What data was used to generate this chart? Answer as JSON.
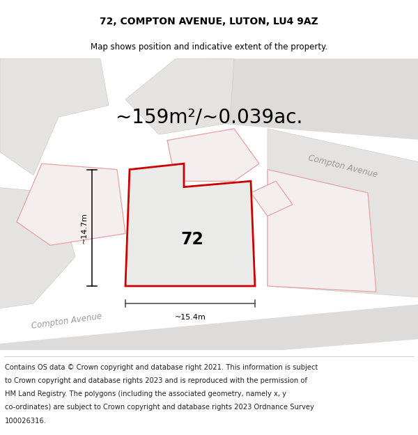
{
  "title": "72, COMPTON AVENUE, LUTON, LU4 9AZ",
  "subtitle": "Map shows position and indicative extent of the property.",
  "area_text": "~159m²/~0.039ac.",
  "house_number": "72",
  "width_label": "~15.4m",
  "height_label": "~14.7m",
  "street_label_1": "Compton Avenue",
  "street_label_2": "Compton Avenue",
  "map_bg": "#f2f1f0",
  "road_fill": "#dddcdb",
  "building_fill": "#e4e3e2",
  "building_edge": "#c8c7c6",
  "plot_fill": "#eaeae8",
  "plot_edge_color": "#cc0000",
  "neighbor_edge": "#e8a0a0",
  "neighbor_fill": "#f5eeee",
  "dim_line_color": "#444444",
  "street_color": "#999999",
  "footer_text_color": "#222222",
  "title_fontsize": 10,
  "subtitle_fontsize": 8.5,
  "area_fontsize": 20,
  "label_fontsize": 8,
  "street_fontsize": 8.5,
  "footer_fontsize": 7.2,
  "footer_lines": [
    "Contains OS data © Crown copyright and database right 2021. This information is subject",
    "to Crown copyright and database rights 2023 and is reproduced with the permission of",
    "HM Land Registry. The polygons (including the associated geometry, namely x, y",
    "co-ordinates) are subject to Crown copyright and database rights 2023 Ordnance Survey",
    "100026316."
  ]
}
